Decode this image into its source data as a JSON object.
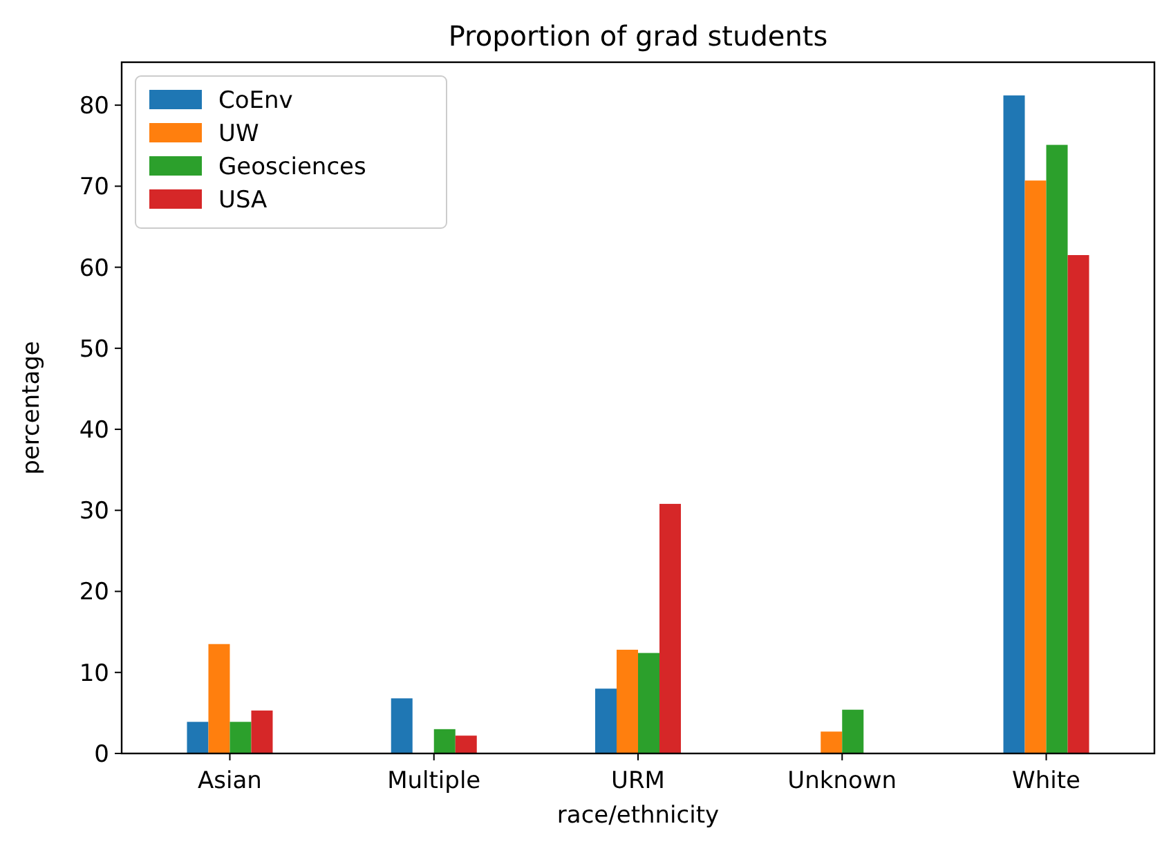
{
  "chart_data": {
    "type": "bar",
    "title": "Proportion of grad students",
    "xlabel": "race/ethnicity",
    "ylabel": "percentage",
    "categories": [
      "Asian",
      "Multiple",
      "URM",
      "Unknown",
      "White"
    ],
    "series": [
      {
        "name": "CoEnv",
        "color": "#1f77b4",
        "values": [
          3.9,
          6.8,
          8.0,
          0,
          81.2
        ]
      },
      {
        "name": "UW",
        "color": "#ff7f0e",
        "values": [
          13.5,
          0,
          12.8,
          2.7,
          70.7
        ]
      },
      {
        "name": "Geosciences",
        "color": "#2ca02c",
        "values": [
          3.9,
          3.0,
          12.4,
          5.4,
          75.1
        ]
      },
      {
        "name": "USA",
        "color": "#d62728",
        "values": [
          5.3,
          2.2,
          30.8,
          0,
          61.5
        ]
      }
    ],
    "ylim": [
      0,
      85.3
    ],
    "yticks": [
      0,
      10,
      20,
      30,
      40,
      50,
      60,
      70,
      80
    ],
    "grid": false,
    "legend": "top left"
  }
}
